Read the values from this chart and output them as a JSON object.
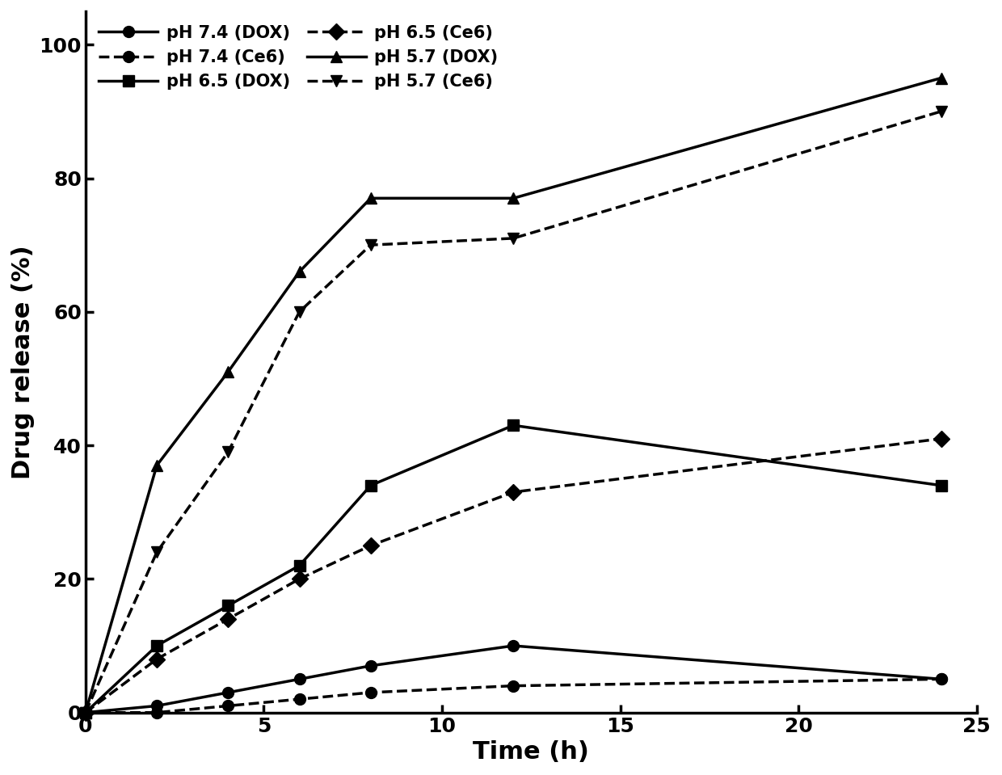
{
  "series": [
    {
      "label": "pH 7.4 (DOX)",
      "x": [
        0,
        2,
        4,
        6,
        8,
        12,
        24
      ],
      "y": [
        0,
        1,
        3,
        5,
        7,
        10,
        5
      ],
      "dashed": false,
      "marker": "o"
    },
    {
      "label": "pH 6.5 (DOX)",
      "x": [
        0,
        2,
        4,
        6,
        8,
        12,
        24
      ],
      "y": [
        0,
        10,
        16,
        22,
        34,
        43,
        34
      ],
      "dashed": false,
      "marker": "s"
    },
    {
      "label": "pH 5.7 (DOX)",
      "x": [
        0,
        2,
        4,
        6,
        8,
        12,
        24
      ],
      "y": [
        0,
        37,
        51,
        66,
        77,
        77,
        95
      ],
      "dashed": false,
      "marker": "^"
    },
    {
      "label": "pH 7.4 (Ce6)",
      "x": [
        0,
        2,
        4,
        6,
        8,
        12,
        24
      ],
      "y": [
        0,
        0,
        1,
        2,
        3,
        4,
        5
      ],
      "dashed": true,
      "marker": "o"
    },
    {
      "label": "pH 6.5 (Ce6)",
      "x": [
        0,
        2,
        4,
        6,
        8,
        12,
        24
      ],
      "y": [
        0,
        8,
        14,
        20,
        25,
        33,
        41
      ],
      "dashed": true,
      "marker": "D"
    },
    {
      "label": "pH 5.7 (Ce6)",
      "x": [
        0,
        2,
        4,
        6,
        8,
        12,
        24
      ],
      "y": [
        0,
        24,
        39,
        60,
        70,
        71,
        90
      ],
      "dashed": true,
      "marker": "v"
    }
  ],
  "xlabel": "Time (h)",
  "ylabel": "Drug release (%)",
  "xlim": [
    0,
    25
  ],
  "ylim": [
    0,
    105
  ],
  "xticks": [
    0,
    5,
    10,
    15,
    20,
    25
  ],
  "yticks": [
    0,
    20,
    40,
    60,
    80,
    100
  ],
  "color": "#000000",
  "linewidth": 2.5,
  "markersize": 10,
  "legend_fontsize": 15,
  "axis_label_fontsize": 22,
  "tick_fontsize": 18,
  "legend_cols": 2,
  "legend_order": [
    0,
    3,
    1,
    4,
    2,
    5
  ]
}
